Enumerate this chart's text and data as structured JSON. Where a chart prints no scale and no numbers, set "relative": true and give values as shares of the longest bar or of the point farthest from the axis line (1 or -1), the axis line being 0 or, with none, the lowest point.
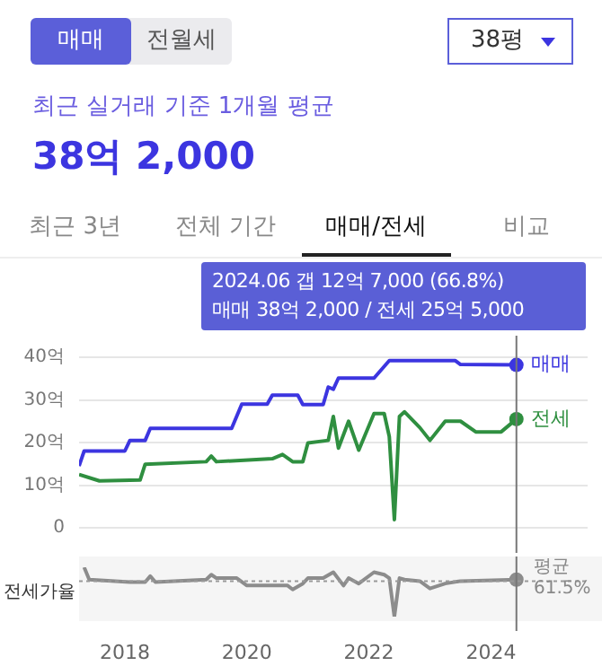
{
  "chart_data": [
    {
      "type": "line",
      "title": "최근 실거래 기준 1개월 평균",
      "subtitle": "38억 2,000",
      "annotations": [
        "매매",
        "전월세",
        "38평",
        "최근 3년",
        "전체 기간",
        "매매/전세",
        "비교",
        "2024.06  갭 12억 7,000 (66.8%)",
        "매매 38억 2,000 / 전세 25억 5,000"
      ],
      "xlim": [
        "2017-04",
        "2025-08"
      ],
      "xticks": [
        "2018",
        "2020",
        "2022",
        "2024"
      ],
      "ylim": [
        0,
        40
      ],
      "yticks": [
        0,
        {
          "value": 10,
          "label": "10억"
        },
        {
          "value": 20,
          "label": "20억"
        },
        {
          "value": 30,
          "label": "30억"
        },
        {
          "value": 40,
          "label": "40억"
        }
      ],
      "tick_labels": "y",
      "grid": "y",
      "ref_lines": [
        {
          "axis": "x",
          "value": "2024-06",
          "color": "#777777"
        }
      ],
      "series": [
        {
          "name": "매매",
          "color": "#3c35e0",
          "x": [
            "2017-04",
            "2017-05",
            "2018-01",
            "2018-02",
            "2018-05",
            "2018-06",
            "2019-10",
            "2019-12",
            "2020-05",
            "2020-06",
            "2020-11",
            "2020-12",
            "2021-04",
            "2021-05",
            "2021-06",
            "2021-07",
            "2022-02",
            "2022-05",
            "2023-06",
            "2023-07",
            "2024-06"
          ],
          "values": [
            14.5,
            18.0,
            18.0,
            20.5,
            20.5,
            23.3,
            23.3,
            29.0,
            29.0,
            31.1,
            31.1,
            28.9,
            28.9,
            33.0,
            32.5,
            35.1,
            35.1,
            39.2,
            39.2,
            38.3,
            38.2
          ]
        },
        {
          "name": "전세",
          "color": "#2f8f40",
          "x": [
            "2017-04",
            "2017-08",
            "2018-04",
            "2018-05",
            "2019-05",
            "2019-06",
            "2019-07",
            "2020-06",
            "2020-08",
            "2020-10",
            "2020-12",
            "2021-01",
            "2021-05",
            "2021-06",
            "2021-07",
            "2021-09",
            "2021-11",
            "2022-02",
            "2022-04",
            "2022-05",
            "2022-06",
            "2022-07",
            "2022-08",
            "2022-11",
            "2023-01",
            "2023-04",
            "2023-07",
            "2023-10",
            "2024-03",
            "2024-06"
          ],
          "values": [
            12.5,
            11.0,
            11.2,
            14.9,
            15.5,
            16.8,
            15.5,
            16.2,
            17.2,
            15.5,
            15.5,
            19.9,
            20.5,
            26.1,
            18.7,
            25.0,
            18.2,
            26.8,
            26.8,
            21.4,
            1.9,
            26.1,
            27.2,
            23.5,
            20.5,
            25.0,
            25.0,
            22.5,
            22.5,
            25.5
          ]
        }
      ]
    },
    {
      "type": "line",
      "relative": true,
      "ylabel": "전세가율",
      "xlim": [
        "2017-04",
        "2025-08"
      ],
      "xticks": [
        "2018",
        "2020",
        "2022",
        "2024"
      ],
      "tick_labels": "x",
      "ref_lines": [
        {
          "axis": "y",
          "value": 0.72,
          "label": "평균 61.5%",
          "color": "#999999",
          "line_style": "dotted"
        },
        {
          "axis": "x",
          "value": "2024-06",
          "color": "#777777"
        }
      ],
      "series": [
        {
          "color": "#8c8c8c",
          "x": [
            "2017-05",
            "2017-06",
            "2018-02",
            "2018-05",
            "2018-06",
            "2018-07",
            "2019-05",
            "2019-06",
            "2019-07",
            "2019-11",
            "2020-01",
            "2020-09",
            "2020-10",
            "2020-12",
            "2021-01",
            "2021-04",
            "2021-06",
            "2021-08",
            "2021-09",
            "2021-11",
            "2022-02",
            "2022-04",
            "2022-05",
            "2022-06",
            "2022-07",
            "2022-08",
            "2022-11",
            "2023-01",
            "2023-04",
            "2023-07",
            "2024-06"
          ],
          "values": [
            1.0,
            0.75,
            0.7,
            0.7,
            0.82,
            0.7,
            0.75,
            0.85,
            0.78,
            0.78,
            0.63,
            0.63,
            0.55,
            0.67,
            0.78,
            0.78,
            0.9,
            0.63,
            0.78,
            0.67,
            0.9,
            0.85,
            0.78,
            0,
            0.78,
            0.75,
            0.72,
            0.57,
            0.67,
            0.72,
            0.75
          ]
        }
      ]
    }
  ]
}
